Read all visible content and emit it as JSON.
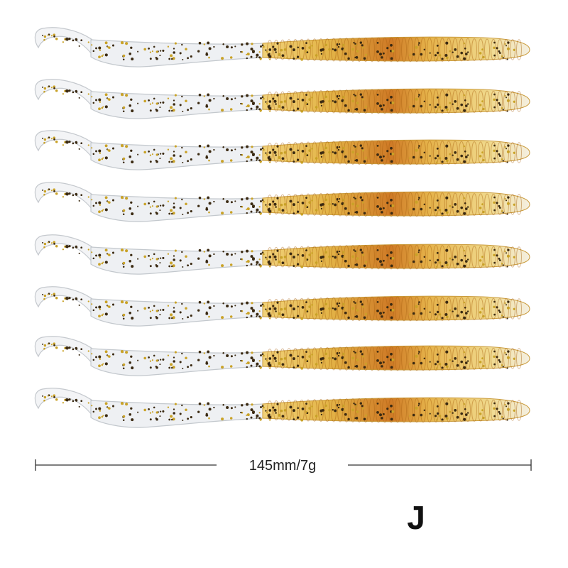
{
  "measurement": "145mm/7g",
  "variant": "J"
}
